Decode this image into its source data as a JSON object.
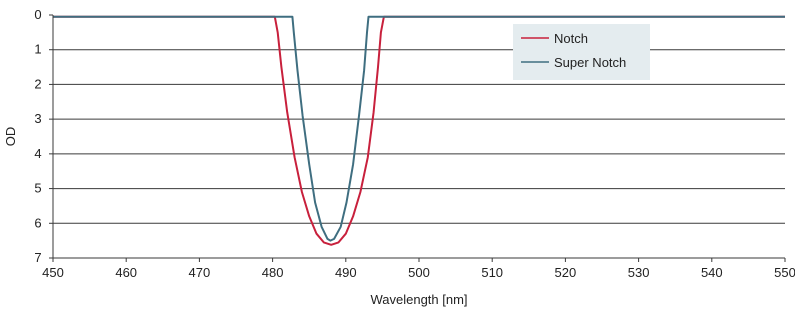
{
  "chart_data": {
    "type": "line",
    "title": "",
    "xlabel": "Wavelength [nm]",
    "ylabel": "OD",
    "xlim": [
      450,
      550
    ],
    "ylim": [
      0,
      7
    ],
    "y_inverted": true,
    "x_ticks": [
      450,
      460,
      470,
      480,
      490,
      500,
      510,
      520,
      530,
      540,
      550
    ],
    "y_ticks": [
      0,
      1,
      2,
      3,
      4,
      5,
      6,
      7
    ],
    "grid": "horizontal",
    "legend_position": "top-right",
    "series": [
      {
        "name": "Notch",
        "color": "#c8203c",
        "x": [
          450,
          480.3,
          480.7,
          481.2,
          482.0,
          483.0,
          484.0,
          485.0,
          486.0,
          487.0,
          488.0,
          489.0,
          490.0,
          491.0,
          492.0,
          493.0,
          493.8,
          494.4,
          494.8,
          495.2,
          550
        ],
        "y": [
          0.05,
          0.05,
          0.5,
          1.5,
          2.8,
          4.1,
          5.1,
          5.8,
          6.3,
          6.55,
          6.62,
          6.55,
          6.3,
          5.8,
          5.1,
          4.1,
          2.8,
          1.5,
          0.5,
          0.05,
          0.05
        ]
      },
      {
        "name": "Super Notch",
        "color": "#3f6e80",
        "x": [
          450,
          482.7,
          482.9,
          483.4,
          484.1,
          485.0,
          485.8,
          486.7,
          487.5,
          487.9,
          488.4,
          489.3,
          490.1,
          491.0,
          491.8,
          492.5,
          492.9,
          493.1,
          550
        ],
        "y": [
          0.05,
          0.05,
          0.5,
          1.6,
          2.9,
          4.3,
          5.4,
          6.1,
          6.45,
          6.5,
          6.45,
          6.1,
          5.4,
          4.3,
          2.9,
          1.6,
          0.5,
          0.05,
          0.05
        ]
      }
    ]
  }
}
